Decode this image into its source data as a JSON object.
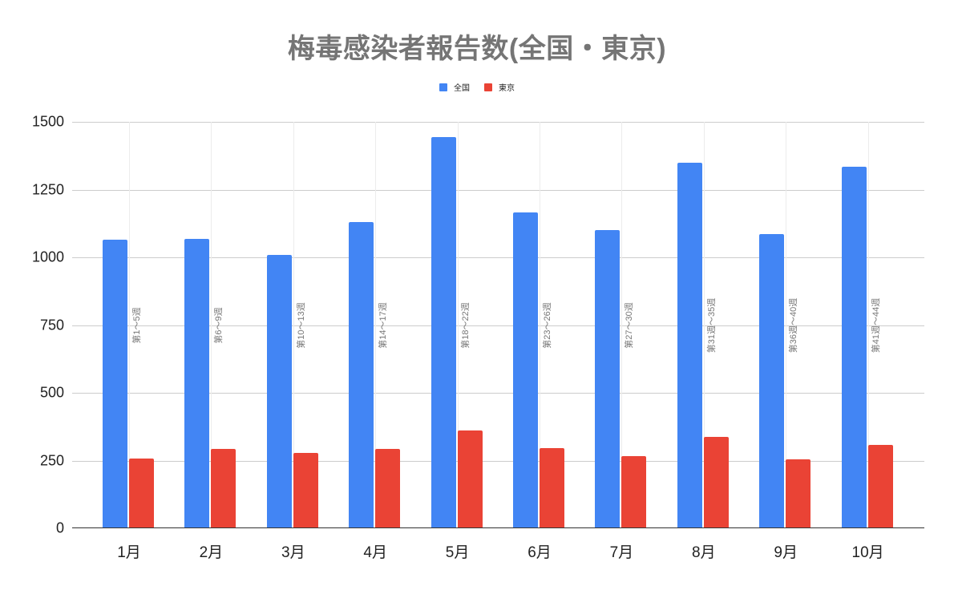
{
  "chart_data": {
    "type": "bar",
    "title": "梅毒感染者報告数(全国・東京)",
    "xlabel": "",
    "ylabel": "",
    "ylim": [
      0,
      1500
    ],
    "yticks": [
      0,
      250,
      500,
      750,
      1000,
      1250,
      1500
    ],
    "grid": true,
    "legend_position": "top",
    "categories": [
      "1月",
      "2月",
      "3月",
      "4月",
      "5月",
      "6月",
      "7月",
      "8月",
      "9月",
      "10月"
    ],
    "series": [
      {
        "name": "全国",
        "color": "#4285f4",
        "values": [
          1065,
          1068,
          1009,
          1131,
          1443,
          1167,
          1102,
          1348,
          1087,
          1333
        ]
      },
      {
        "name": "東京",
        "color": "#ea4335",
        "values": [
          258,
          293,
          277,
          293,
          360,
          296,
          265,
          336,
          254,
          309
        ]
      }
    ],
    "annotations": [
      "第1～5週",
      "第6～9週",
      "第10～13週",
      "第14～17週",
      "第18～22週",
      "第23～26週",
      "第27～30週",
      "第31週～35週",
      "第36週～40週",
      "第41週～44週"
    ]
  },
  "legend": [
    {
      "label": "全国",
      "color": "#4285f4"
    },
    {
      "label": "東京",
      "color": "#ea4335"
    }
  ]
}
